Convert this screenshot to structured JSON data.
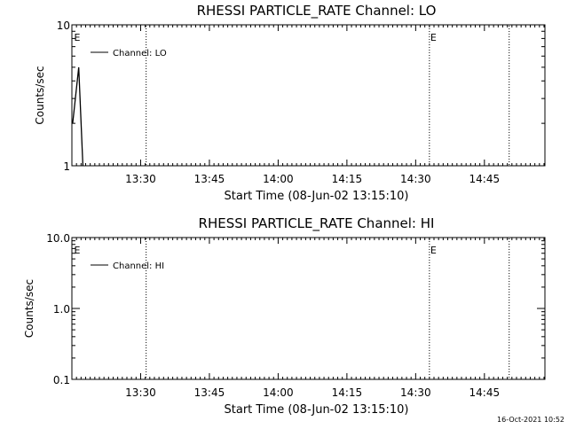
{
  "chart_data": [
    {
      "type": "line",
      "title": "RHESSI PARTICLE_RATE Channel: LO",
      "xlabel": "Start Time (08-Jun-02 13:15:10)",
      "ylabel": "Counts/sec",
      "y_scale": "log",
      "ylim": [
        1,
        10
      ],
      "y_ticks": [
        {
          "value": 1,
          "label": "1"
        },
        {
          "value": 10,
          "label": "10"
        }
      ],
      "x_range_minutes": [
        13.25,
        14.97
      ],
      "x_ticks": [
        {
          "t": 13.5,
          "label": "13:30"
        },
        {
          "t": 13.75,
          "label": "13:45"
        },
        {
          "t": 14.0,
          "label": "14:00"
        },
        {
          "t": 14.25,
          "label": "14:15"
        },
        {
          "t": 14.5,
          "label": "14:30"
        },
        {
          "t": 14.75,
          "label": "14:45"
        }
      ],
      "series": [
        {
          "name": "Channel: LO",
          "x": [
            13.253,
            13.275,
            13.29
          ],
          "y": [
            2.0,
            5.0,
            1.0
          ]
        }
      ],
      "markers": [
        {
          "t": 13.255,
          "label": "E",
          "line": false
        },
        {
          "t": 13.52,
          "label": "",
          "line": true
        },
        {
          "t": 14.55,
          "label": "E",
          "line": true
        },
        {
          "t": 14.84,
          "label": "",
          "line": true
        }
      ],
      "legend": "top-left",
      "grid": false
    },
    {
      "type": "line",
      "title": "RHESSI PARTICLE_RATE Channel: HI",
      "xlabel": "Start Time (08-Jun-02 13:15:10)",
      "ylabel": "Counts/sec",
      "y_scale": "log",
      "ylim": [
        0.1,
        10
      ],
      "y_ticks": [
        {
          "value": 0.1,
          "label": "0.1"
        },
        {
          "value": 1,
          "label": "1.0"
        },
        {
          "value": 10,
          "label": "10.0"
        }
      ],
      "x_range_minutes": [
        13.25,
        14.97
      ],
      "x_ticks": [
        {
          "t": 13.5,
          "label": "13:30"
        },
        {
          "t": 13.75,
          "label": "13:45"
        },
        {
          "t": 14.0,
          "label": "14:00"
        },
        {
          "t": 14.25,
          "label": "14:15"
        },
        {
          "t": 14.5,
          "label": "14:30"
        },
        {
          "t": 14.75,
          "label": "14:45"
        }
      ],
      "series": [
        {
          "name": "Channel: HI",
          "x": [],
          "y": []
        }
      ],
      "markers": [
        {
          "t": 13.255,
          "label": "E",
          "line": false
        },
        {
          "t": 13.52,
          "label": "",
          "line": true
        },
        {
          "t": 14.55,
          "label": "E",
          "line": true
        },
        {
          "t": 14.84,
          "label": "",
          "line": true
        }
      ],
      "legend": "top-left",
      "grid": false
    }
  ],
  "timestamp": "16-Oct-2021 10:52"
}
